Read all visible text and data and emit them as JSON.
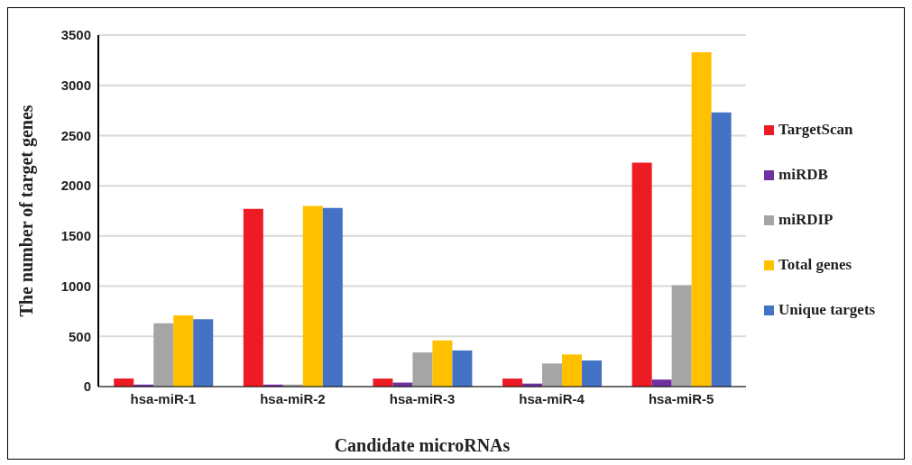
{
  "chart_data": {
    "type": "bar",
    "xlabel": "Candidate microRNAs",
    "ylabel": "The number of target genes",
    "categories": [
      "hsa-miR-1",
      "hsa-miR-2",
      "hsa-miR-3",
      "hsa-miR-4",
      "hsa-miR-5"
    ],
    "series": [
      {
        "name": "TargetScan",
        "color": "#ed1c24",
        "values": [
          80,
          1770,
          80,
          80,
          2230
        ]
      },
      {
        "name": "miRDB",
        "color": "#7030a0",
        "values": [
          20,
          20,
          40,
          30,
          70
        ]
      },
      {
        "name": "miRDIP",
        "color": "#a5a5a5",
        "values": [
          630,
          20,
          340,
          230,
          1010
        ]
      },
      {
        "name": "Total genes",
        "color": "#ffc000",
        "values": [
          710,
          1800,
          460,
          320,
          3330
        ]
      },
      {
        "name": "Unique targets",
        "color": "#4472c4",
        "values": [
          670,
          1780,
          360,
          260,
          2730
        ]
      }
    ],
    "ylim": [
      0,
      3500
    ],
    "yticks": [
      0,
      500,
      1000,
      1500,
      2000,
      2500,
      3000,
      3500
    ],
    "grid": "y",
    "legend": "right"
  }
}
